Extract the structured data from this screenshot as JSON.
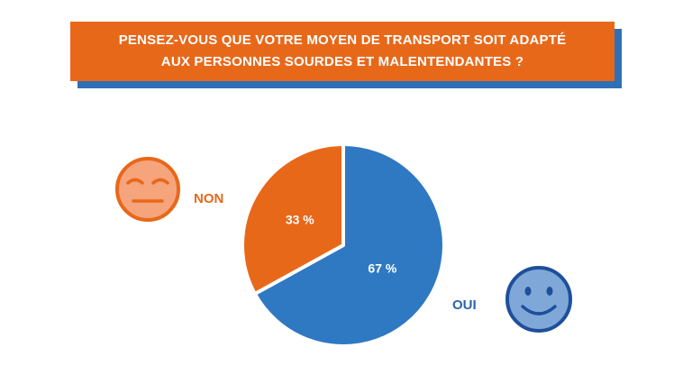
{
  "title": {
    "line1": "PENSEZ-VOUS QUE VOTRE MOYEN DE TRANSPORT SOIT ADAPTÉ",
    "line2": "AUX PERSONNES SOURDES ET MALENTENDANTES ?"
  },
  "colors": {
    "banner": "#e8681a",
    "banner_shadow": "#2f6fb6",
    "non": "#e8681a",
    "oui": "#2f78c2",
    "oui_label": "#2a64ac",
    "non_face_fill": "#f6a47c",
    "non_face_stroke": "#e8681a",
    "oui_face_fill": "#7fa8d8",
    "oui_face_stroke": "#1f4f9a"
  },
  "chart_data": {
    "type": "pie",
    "categories": [
      "NON",
      "OUI"
    ],
    "values": [
      33,
      67
    ],
    "value_labels": [
      "33 %",
      "67 %"
    ],
    "legend": "labels beside slices with face icons"
  },
  "icons": {
    "non": "neutral-face-icon",
    "oui": "smiley-face-icon"
  }
}
